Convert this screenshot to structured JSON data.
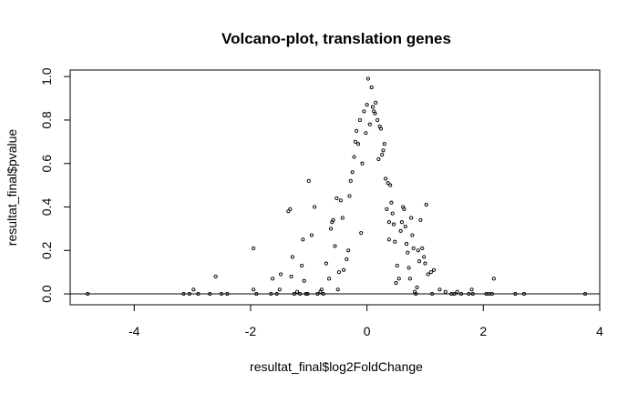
{
  "chart_data": {
    "type": "scatter",
    "title": "Volcano-plot, translation genes",
    "xlabel": "resultat_final$log2FoldChange",
    "ylabel": "resultat_final$pvalue",
    "xlim": [
      -5.1,
      4.0
    ],
    "ylim": [
      -0.05,
      1.03
    ],
    "xticks": [
      -4,
      -2,
      0,
      2,
      4
    ],
    "yticks": [
      0.0,
      0.2,
      0.4,
      0.6,
      0.8,
      1.0
    ],
    "xtick_labels": [
      "-4",
      "-2",
      "0",
      "2",
      "4"
    ],
    "ytick_labels": [
      "0.0",
      "0.2",
      "0.4",
      "0.6",
      "0.8",
      "1.0"
    ],
    "hline": 0,
    "grid": false,
    "legend": "none",
    "points": [
      [
        -4.8,
        0.0
      ],
      [
        -3.15,
        0.0
      ],
      [
        -3.05,
        0.0
      ],
      [
        -2.98,
        0.02
      ],
      [
        -2.9,
        0.0
      ],
      [
        -2.7,
        0.0
      ],
      [
        -2.6,
        0.08
      ],
      [
        -2.5,
        0.0
      ],
      [
        -2.4,
        0.0
      ],
      [
        -1.95,
        0.21
      ],
      [
        -1.95,
        0.02
      ],
      [
        -1.9,
        0.0
      ],
      [
        -1.65,
        0.0
      ],
      [
        -1.62,
        0.07
      ],
      [
        -1.55,
        0.0
      ],
      [
        -1.5,
        0.02
      ],
      [
        -1.48,
        0.09
      ],
      [
        -1.35,
        0.38
      ],
      [
        -1.32,
        0.39
      ],
      [
        -1.3,
        0.08
      ],
      [
        -1.28,
        0.17
      ],
      [
        -1.25,
        0.0
      ],
      [
        -1.2,
        0.01
      ],
      [
        -1.15,
        0.0
      ],
      [
        -1.12,
        0.13
      ],
      [
        -1.1,
        0.25
      ],
      [
        -1.08,
        0.06
      ],
      [
        -1.05,
        0.0
      ],
      [
        -1.02,
        0.0
      ],
      [
        -1.0,
        0.52
      ],
      [
        -0.95,
        0.27
      ],
      [
        -0.9,
        0.4
      ],
      [
        -0.85,
        0.0
      ],
      [
        -0.8,
        0.01
      ],
      [
        -0.78,
        0.02
      ],
      [
        -0.75,
        0.0
      ],
      [
        -0.7,
        0.14
      ],
      [
        -0.65,
        0.07
      ],
      [
        -0.62,
        0.3
      ],
      [
        -0.6,
        0.33
      ],
      [
        -0.58,
        0.34
      ],
      [
        -0.55,
        0.22
      ],
      [
        -0.52,
        0.44
      ],
      [
        -0.5,
        0.02
      ],
      [
        -0.48,
        0.1
      ],
      [
        -0.45,
        0.43
      ],
      [
        -0.42,
        0.35
      ],
      [
        -0.4,
        0.11
      ],
      [
        -0.35,
        0.16
      ],
      [
        -0.32,
        0.2
      ],
      [
        -0.3,
        0.45
      ],
      [
        -0.28,
        0.52
      ],
      [
        -0.25,
        0.56
      ],
      [
        -0.22,
        0.63
      ],
      [
        -0.2,
        0.7
      ],
      [
        -0.18,
        0.75
      ],
      [
        -0.15,
        0.69
      ],
      [
        -0.12,
        0.8
      ],
      [
        -0.1,
        0.28
      ],
      [
        -0.08,
        0.6
      ],
      [
        -0.05,
        0.84
      ],
      [
        -0.02,
        0.74
      ],
      [
        0.0,
        0.87
      ],
      [
        0.02,
        0.99
      ],
      [
        0.05,
        0.78
      ],
      [
        0.08,
        0.95
      ],
      [
        0.1,
        0.86
      ],
      [
        0.12,
        0.84
      ],
      [
        0.14,
        0.83
      ],
      [
        0.15,
        0.88
      ],
      [
        0.18,
        0.8
      ],
      [
        0.2,
        0.62
      ],
      [
        0.22,
        0.77
      ],
      [
        0.24,
        0.76
      ],
      [
        0.26,
        0.64
      ],
      [
        0.28,
        0.66
      ],
      [
        0.3,
        0.69
      ],
      [
        0.32,
        0.53
      ],
      [
        0.34,
        0.39
      ],
      [
        0.36,
        0.51
      ],
      [
        0.38,
        0.25
      ],
      [
        0.38,
        0.33
      ],
      [
        0.4,
        0.5
      ],
      [
        0.42,
        0.42
      ],
      [
        0.44,
        0.37
      ],
      [
        0.46,
        0.32
      ],
      [
        0.48,
        0.24
      ],
      [
        0.5,
        0.05
      ],
      [
        0.52,
        0.13
      ],
      [
        0.55,
        0.07
      ],
      [
        0.58,
        0.29
      ],
      [
        0.6,
        0.33
      ],
      [
        0.62,
        0.4
      ],
      [
        0.64,
        0.39
      ],
      [
        0.66,
        0.31
      ],
      [
        0.68,
        0.23
      ],
      [
        0.7,
        0.19
      ],
      [
        0.72,
        0.12
      ],
      [
        0.74,
        0.07
      ],
      [
        0.76,
        0.35
      ],
      [
        0.78,
        0.27
      ],
      [
        0.8,
        0.21
      ],
      [
        0.82,
        0.01
      ],
      [
        0.84,
        0.0
      ],
      [
        0.86,
        0.03
      ],
      [
        0.88,
        0.2
      ],
      [
        0.9,
        0.15
      ],
      [
        0.92,
        0.34
      ],
      [
        0.95,
        0.21
      ],
      [
        0.98,
        0.17
      ],
      [
        1.0,
        0.14
      ],
      [
        1.02,
        0.41
      ],
      [
        1.05,
        0.09
      ],
      [
        1.1,
        0.1
      ],
      [
        1.12,
        0.0
      ],
      [
        1.15,
        0.11
      ],
      [
        1.25,
        0.02
      ],
      [
        1.35,
        0.01
      ],
      [
        1.45,
        0.0
      ],
      [
        1.5,
        0.0
      ],
      [
        1.55,
        0.01
      ],
      [
        1.62,
        0.0
      ],
      [
        1.75,
        0.0
      ],
      [
        1.8,
        0.02
      ],
      [
        1.82,
        0.0
      ],
      [
        2.05,
        0.0
      ],
      [
        2.1,
        0.0
      ],
      [
        2.15,
        0.0
      ],
      [
        2.18,
        0.07
      ],
      [
        2.55,
        0.0
      ],
      [
        2.7,
        0.0
      ],
      [
        3.75,
        0.0
      ]
    ]
  }
}
